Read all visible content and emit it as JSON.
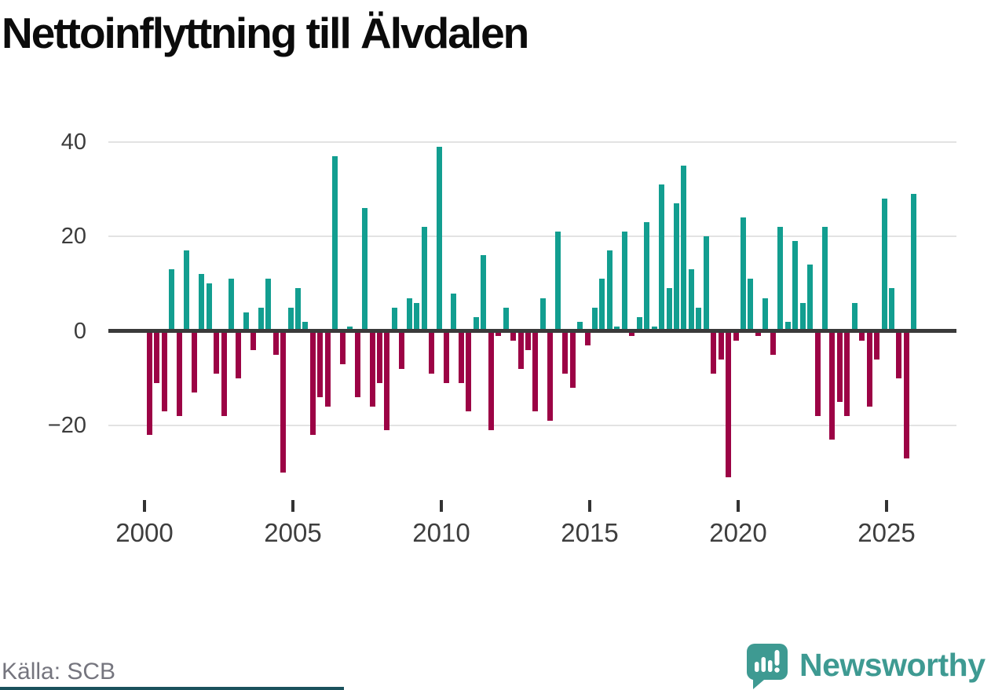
{
  "title": "Nettoinflyttning till Älvdalen",
  "source": "Källa: SCB",
  "branding": {
    "wordmark": "Newsworthy",
    "icon": "newsworthy-chart-bubble-icon",
    "color": "#3e9a92"
  },
  "colors": {
    "positive": "#129e90",
    "negative": "#9c0345",
    "zero_line": "#3a3a3a",
    "gridline": "#e3e3e3",
    "axis_text": "#3c3c3c",
    "source_text": "#75757e",
    "footer_strip": "#1a515c",
    "background": "#ffffff"
  },
  "chart_data": {
    "type": "bar",
    "title": "Nettoinflyttning till Älvdalen",
    "frequency": "quarterly",
    "start_year": 2000,
    "start_quarter": 1,
    "values": [
      -22,
      -11,
      -17,
      13,
      -18,
      17,
      -13,
      12,
      10,
      -9,
      -18,
      11,
      -10,
      4,
      -4,
      5,
      11,
      -5,
      -30,
      5,
      9,
      2,
      -22,
      -14,
      -16,
      37,
      -7,
      1,
      -14,
      26,
      -16,
      -11,
      -21,
      5,
      -8,
      7,
      6,
      22,
      -9,
      39,
      -11,
      8,
      -11,
      -17,
      3,
      16,
      -21,
      -1,
      5,
      -2,
      -8,
      -4,
      -17,
      7,
      -19,
      21,
      -9,
      -12,
      2,
      -3,
      5,
      11,
      17,
      1,
      21,
      -1,
      3,
      23,
      1,
      31,
      9,
      27,
      35,
      13,
      5,
      20,
      -9,
      -6,
      -31,
      -2,
      24,
      11,
      -1,
      7,
      -5,
      22,
      2,
      19,
      6,
      14,
      -18,
      22,
      -23,
      -15,
      -18,
      6,
      -2,
      -16,
      -6,
      28,
      9,
      -10,
      -27,
      29
    ],
    "x_tick_labels": [
      "2000",
      "2005",
      "2010",
      "2015",
      "2020",
      "2025"
    ],
    "x_tick_years": [
      2000,
      2005,
      2010,
      2015,
      2020,
      2025
    ],
    "y_tick_labels": [
      "40",
      "20",
      "0",
      "−20"
    ],
    "y_tick_values": [
      40,
      20,
      0,
      -20
    ],
    "ylim": [
      -33,
      43
    ],
    "xlabel": "",
    "ylabel": "",
    "grid": true,
    "legend": false,
    "positive_color": "#129e90",
    "negative_color": "#9c0345"
  }
}
